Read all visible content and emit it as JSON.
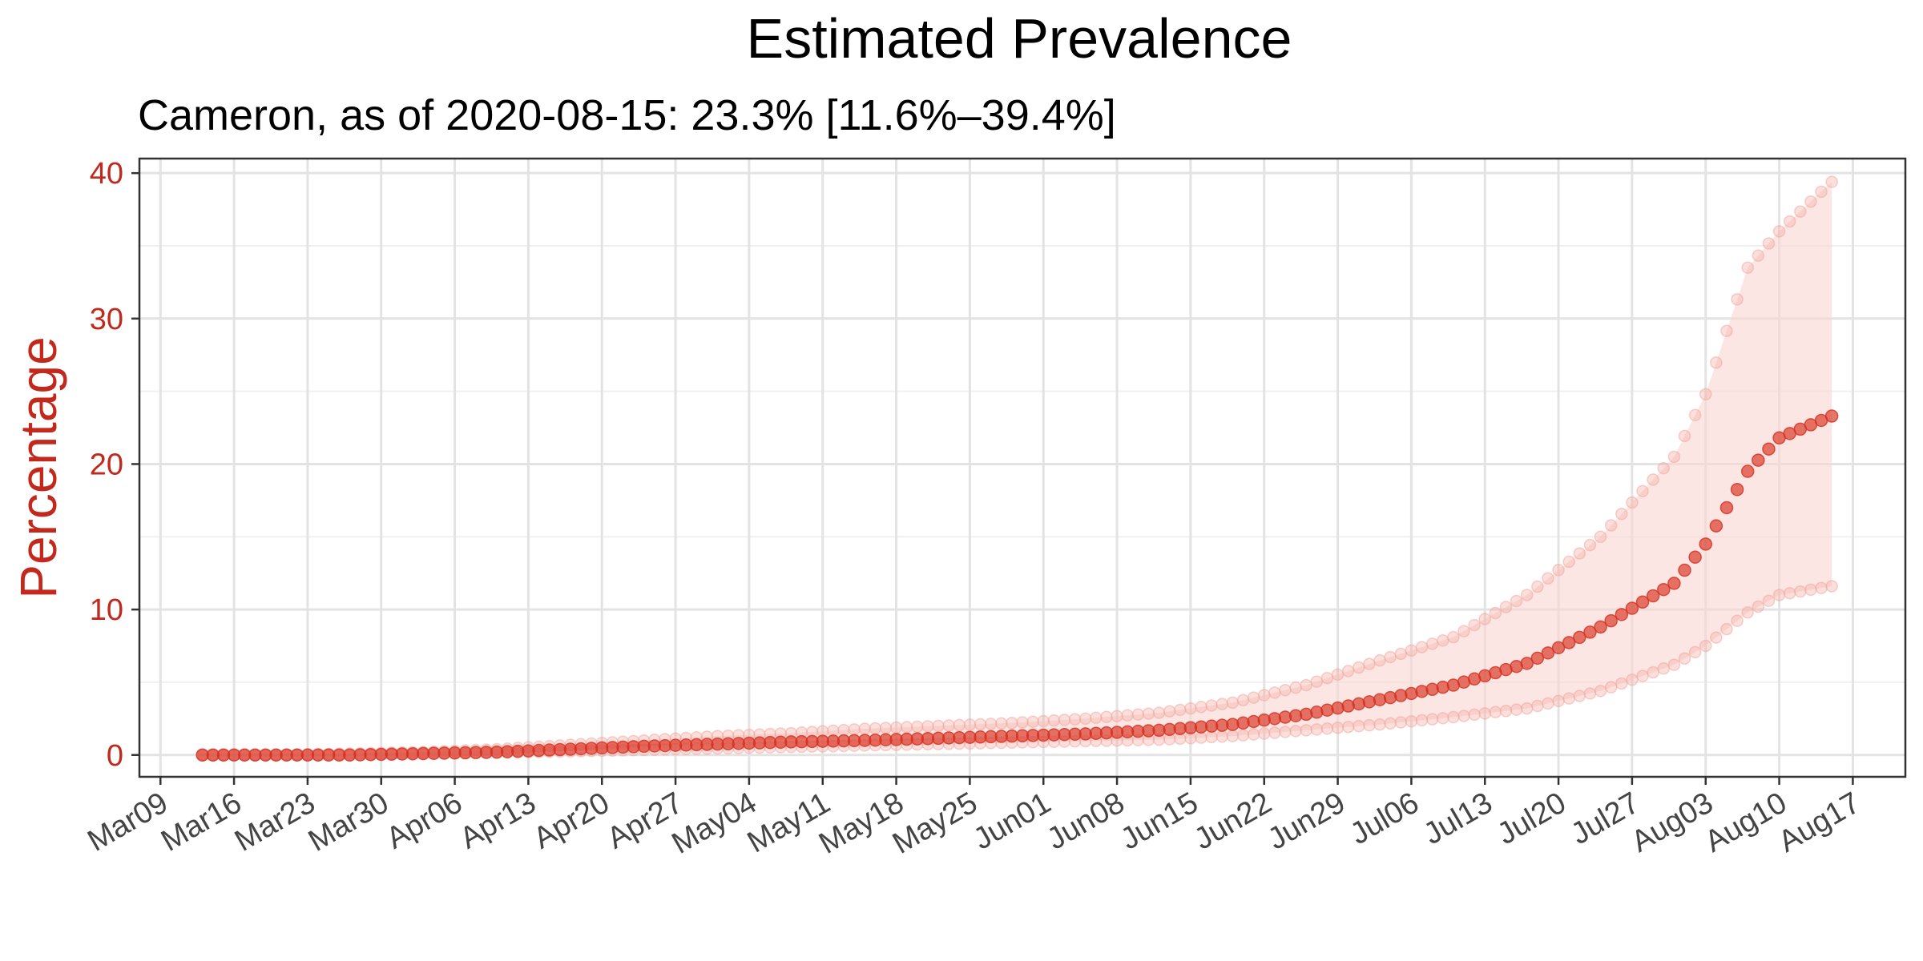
{
  "chart_data": {
    "type": "line",
    "title": "Estimated Prevalence",
    "subtitle": "Cameron, as of 2020-08-15:  23.3% [11.6%–39.4%]",
    "ylabel": "Percentage",
    "xlabel": "",
    "x_range": [
      "2020-03-07",
      "2020-08-22"
    ],
    "ylim": [
      -1.5,
      41
    ],
    "y_ticks": [
      0,
      10,
      20,
      30,
      40
    ],
    "x_ticks": [
      {
        "date": "2020-03-09",
        "label": "Mar09"
      },
      {
        "date": "2020-03-16",
        "label": "Mar16"
      },
      {
        "date": "2020-03-23",
        "label": "Mar23"
      },
      {
        "date": "2020-03-30",
        "label": "Mar30"
      },
      {
        "date": "2020-04-06",
        "label": "Apr06"
      },
      {
        "date": "2020-04-13",
        "label": "Apr13"
      },
      {
        "date": "2020-04-20",
        "label": "Apr20"
      },
      {
        "date": "2020-04-27",
        "label": "Apr27"
      },
      {
        "date": "2020-05-04",
        "label": "May04"
      },
      {
        "date": "2020-05-11",
        "label": "May11"
      },
      {
        "date": "2020-05-18",
        "label": "May18"
      },
      {
        "date": "2020-05-25",
        "label": "May25"
      },
      {
        "date": "2020-06-01",
        "label": "Jun01"
      },
      {
        "date": "2020-06-08",
        "label": "Jun08"
      },
      {
        "date": "2020-06-15",
        "label": "Jun15"
      },
      {
        "date": "2020-06-22",
        "label": "Jun22"
      },
      {
        "date": "2020-06-29",
        "label": "Jun29"
      },
      {
        "date": "2020-07-06",
        "label": "Jul06"
      },
      {
        "date": "2020-07-13",
        "label": "Jul13"
      },
      {
        "date": "2020-07-20",
        "label": "Jul20"
      },
      {
        "date": "2020-07-27",
        "label": "Jul27"
      },
      {
        "date": "2020-08-03",
        "label": "Aug03"
      },
      {
        "date": "2020-08-10",
        "label": "Aug10"
      },
      {
        "date": "2020-08-17",
        "label": "Aug17"
      }
    ],
    "grid": true,
    "colors": {
      "estimate": "#d7301f",
      "bounds": "#f4a39a",
      "band": "#f8d5d0",
      "ylabel": "#c2291c"
    },
    "start_date": "2020-03-13",
    "end_date": "2020-08-15",
    "series": [
      {
        "role": "estimate",
        "points": [
          [
            "2020-03-13",
            0.0
          ],
          [
            "2020-03-20",
            0.0
          ],
          [
            "2020-03-27",
            0.0
          ],
          [
            "2020-04-03",
            0.1
          ],
          [
            "2020-04-10",
            0.2
          ],
          [
            "2020-04-17",
            0.4
          ],
          [
            "2020-04-24",
            0.6
          ],
          [
            "2020-05-01",
            0.75
          ],
          [
            "2020-05-08",
            0.9
          ],
          [
            "2020-05-15",
            1.0
          ],
          [
            "2020-05-22",
            1.15
          ],
          [
            "2020-05-29",
            1.3
          ],
          [
            "2020-06-05",
            1.45
          ],
          [
            "2020-06-12",
            1.7
          ],
          [
            "2020-06-19",
            2.1
          ],
          [
            "2020-06-26",
            2.8
          ],
          [
            "2020-07-03",
            3.8
          ],
          [
            "2020-07-10",
            4.8
          ],
          [
            "2020-07-17",
            6.3
          ],
          [
            "2020-07-24",
            8.8
          ],
          [
            "2020-07-31",
            11.8
          ],
          [
            "2020-08-03",
            14.5
          ],
          [
            "2020-08-07",
            19.5
          ],
          [
            "2020-08-10",
            21.8
          ],
          [
            "2020-08-15",
            23.3
          ]
        ]
      },
      {
        "role": "lower",
        "points": [
          [
            "2020-03-13",
            0.0
          ],
          [
            "2020-03-20",
            0.0
          ],
          [
            "2020-03-27",
            0.0
          ],
          [
            "2020-04-03",
            0.05
          ],
          [
            "2020-04-10",
            0.15
          ],
          [
            "2020-04-17",
            0.25
          ],
          [
            "2020-04-24",
            0.35
          ],
          [
            "2020-05-01",
            0.45
          ],
          [
            "2020-05-08",
            0.55
          ],
          [
            "2020-05-15",
            0.65
          ],
          [
            "2020-05-22",
            0.75
          ],
          [
            "2020-05-29",
            0.85
          ],
          [
            "2020-06-05",
            0.95
          ],
          [
            "2020-06-12",
            1.05
          ],
          [
            "2020-06-19",
            1.3
          ],
          [
            "2020-06-26",
            1.7
          ],
          [
            "2020-07-03",
            2.1
          ],
          [
            "2020-07-10",
            2.6
          ],
          [
            "2020-07-17",
            3.2
          ],
          [
            "2020-07-24",
            4.4
          ],
          [
            "2020-07-31",
            6.2
          ],
          [
            "2020-08-03",
            7.5
          ],
          [
            "2020-08-07",
            9.8
          ],
          [
            "2020-08-10",
            11.0
          ],
          [
            "2020-08-15",
            11.6
          ]
        ]
      },
      {
        "role": "upper",
        "points": [
          [
            "2020-03-13",
            0.0
          ],
          [
            "2020-03-20",
            0.0
          ],
          [
            "2020-03-27",
            0.1
          ],
          [
            "2020-04-03",
            0.2
          ],
          [
            "2020-04-10",
            0.4
          ],
          [
            "2020-04-17",
            0.7
          ],
          [
            "2020-04-24",
            1.0
          ],
          [
            "2020-05-01",
            1.3
          ],
          [
            "2020-05-08",
            1.5
          ],
          [
            "2020-05-15",
            1.8
          ],
          [
            "2020-05-22",
            2.0
          ],
          [
            "2020-05-29",
            2.2
          ],
          [
            "2020-06-05",
            2.5
          ],
          [
            "2020-06-12",
            2.9
          ],
          [
            "2020-06-19",
            3.6
          ],
          [
            "2020-06-26",
            4.8
          ],
          [
            "2020-07-03",
            6.5
          ],
          [
            "2020-07-10",
            8.1
          ],
          [
            "2020-07-17",
            11.0
          ],
          [
            "2020-07-24",
            15.0
          ],
          [
            "2020-07-31",
            20.5
          ],
          [
            "2020-08-03",
            24.8
          ],
          [
            "2020-08-07",
            33.5
          ],
          [
            "2020-08-10",
            36.0
          ],
          [
            "2020-08-15",
            39.4
          ]
        ]
      }
    ]
  }
}
